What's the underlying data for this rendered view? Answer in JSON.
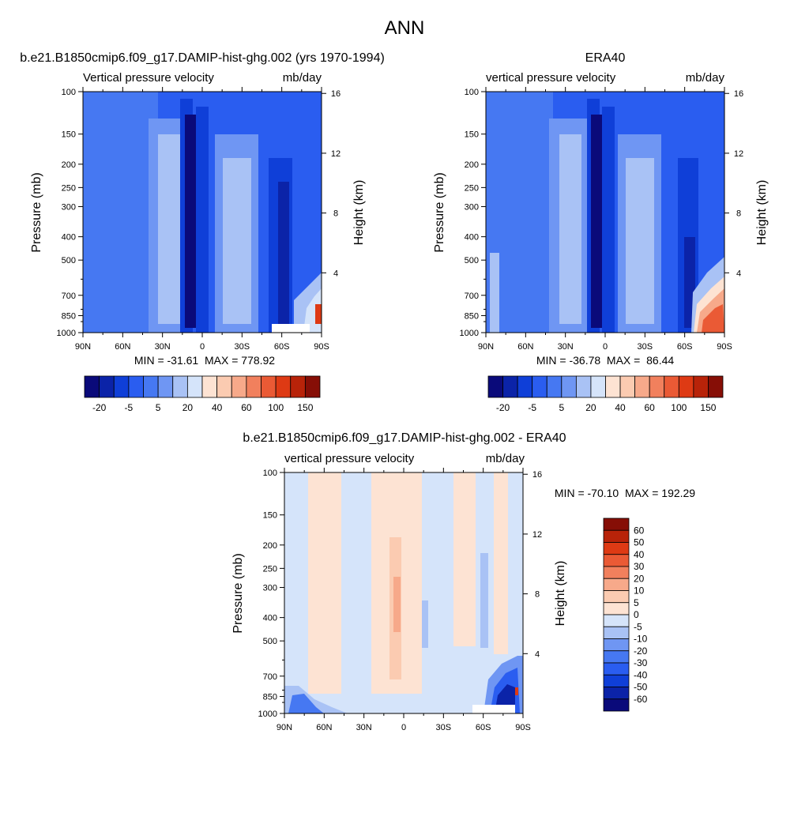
{
  "figure_title": "ANN",
  "colors": {
    "neg_panel_scale": [
      "#0a0a7a",
      "#0b23a8",
      "#0f3fd8",
      "#2a5df0",
      "#4678f2",
      "#6f96f3",
      "#a9c2f5",
      "#d5e4fa"
    ],
    "pos_panel_scale": [
      "#fde3d3",
      "#fbcbb1",
      "#f7a98a",
      "#f1805d",
      "#ea5a35",
      "#de3a14",
      "#b82309",
      "#860e06"
    ],
    "diff_scale_top_to_bottom": [
      "#860e06",
      "#b82309",
      "#de3a14",
      "#ea5a35",
      "#f1805d",
      "#f7a98a",
      "#fbcbb1",
      "#fde3d3",
      "#d5e4fa",
      "#a9c2f5",
      "#6f96f3",
      "#4678f2",
      "#2a5df0",
      "#0f3fd8",
      "#0b23a8",
      "#0a0a7a"
    ],
    "missing_data": "#ffffff"
  },
  "chart_data": [
    {
      "type": "heatmap",
      "panel": "model",
      "title": "b.e21.B1850cmip6.f09_g17.DAMIP-hist-ghg.002 (yrs 1970-1994)",
      "left_label": "Vertical pressure velocity",
      "right_label": "mb/day",
      "ylabel": "Pressure (mb)",
      "y2label": "Height (km)",
      "x_ticks": [
        "90N",
        "60N",
        "30N",
        "0",
        "30S",
        "60S",
        "90S"
      ],
      "y_ticks": [
        "100",
        "150",
        "200",
        "250",
        "300",
        "400",
        "500",
        "700",
        "850",
        "1000"
      ],
      "y2_ticks": [
        "16",
        "12",
        "8",
        "4"
      ],
      "stats": "MIN = -31.61  MAX = 778.92",
      "colorbar_labels": [
        "-20",
        "-5",
        "5",
        "20",
        "40",
        "60",
        "100",
        "150"
      ],
      "x_range": [
        90,
        -90
      ],
      "y_range": [
        100,
        1000
      ],
      "y_scale": "log"
    },
    {
      "type": "heatmap",
      "panel": "obs",
      "title": "ERA40",
      "left_label": "vertical pressure velocity",
      "right_label": "mb/day",
      "ylabel": "Pressure (mb)",
      "y2label": "Height (km)",
      "x_ticks": [
        "90N",
        "60N",
        "30N",
        "0",
        "30S",
        "60S",
        "90S"
      ],
      "y_ticks": [
        "100",
        "150",
        "200",
        "250",
        "300",
        "400",
        "500",
        "700",
        "850",
        "1000"
      ],
      "y2_ticks": [
        "16",
        "12",
        "8",
        "4"
      ],
      "stats": "MIN = -36.78  MAX =  86.44",
      "colorbar_labels": [
        "-20",
        "-5",
        "5",
        "20",
        "40",
        "60",
        "100",
        "150"
      ],
      "x_range": [
        90,
        -90
      ],
      "y_range": [
        100,
        1000
      ],
      "y_scale": "log"
    },
    {
      "type": "heatmap",
      "panel": "difference",
      "title": "b.e21.B1850cmip6.f09_g17.DAMIP-hist-ghg.002 - ERA40",
      "left_label": "vertical pressure velocity",
      "right_label": "mb/day",
      "ylabel": "Pressure (mb)",
      "y2label": "Height (km)",
      "x_ticks": [
        "90N",
        "60N",
        "30N",
        "0",
        "30S",
        "60S",
        "90S"
      ],
      "y_ticks": [
        "100",
        "150",
        "200",
        "250",
        "300",
        "400",
        "500",
        "700",
        "850",
        "1000"
      ],
      "y2_ticks": [
        "16",
        "12",
        "8",
        "4"
      ],
      "stats": "MIN = -70.10  MAX = 192.29",
      "colorbar_labels": [
        "60",
        "50",
        "40",
        "30",
        "20",
        "10",
        "5",
        "0",
        "-5",
        "-10",
        "-20",
        "-30",
        "-40",
        "-50",
        "-60"
      ],
      "x_range": [
        90,
        -90
      ],
      "y_range": [
        100,
        1000
      ],
      "y_scale": "log"
    }
  ]
}
